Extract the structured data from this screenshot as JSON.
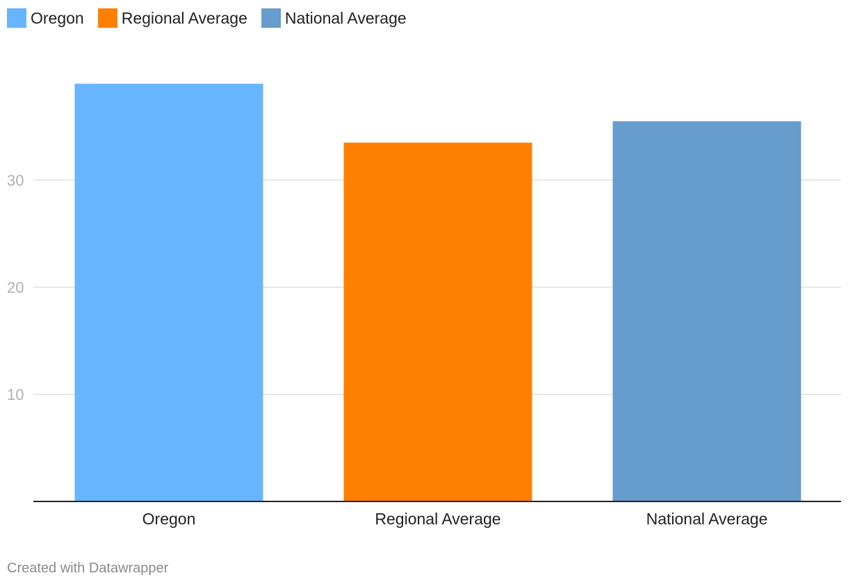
{
  "legend": [
    {
      "label": "Oregon",
      "color": "#67b5ff"
    },
    {
      "label": "Regional Average",
      "color": "#ff8000"
    },
    {
      "label": "National Average",
      "color": "#679dcc"
    }
  ],
  "footer": {
    "credit": "Created with Datawrapper"
  },
  "chart_data": {
    "type": "bar",
    "categories": [
      "Oregon",
      "Regional Average",
      "National Average"
    ],
    "values": [
      39,
      33.5,
      35.5
    ],
    "colors": [
      "#67b5ff",
      "#ff8000",
      "#679dcc"
    ],
    "yticks": [
      10,
      20,
      30
    ],
    "ylim": [
      0,
      40
    ],
    "grid": true,
    "legend_position": "top-left",
    "title": "",
    "xlabel": "",
    "ylabel": ""
  }
}
